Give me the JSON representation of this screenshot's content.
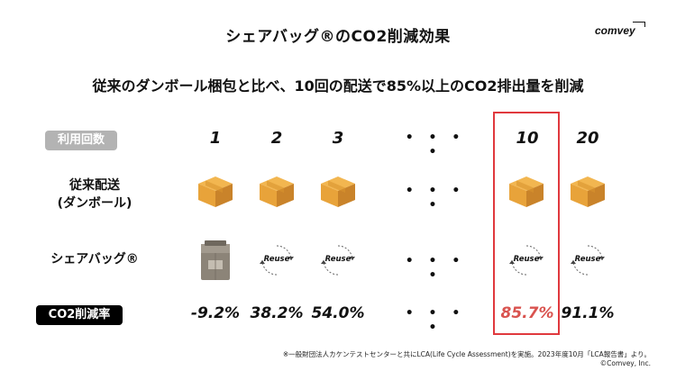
{
  "header": {
    "title": "シェアバッグ®のCO2削減効果",
    "logo": "comvey"
  },
  "subtitle": "従来のダンボール梱包と比べ、10回の配送で85%以上のCO2排出量を削減",
  "columns": {
    "label": "利用回数",
    "items": [
      "1",
      "2",
      "3",
      "10",
      "20"
    ],
    "dots": "• • • •"
  },
  "rows": {
    "conventional": {
      "label_line1": "従来配送",
      "label_line2": "(ダンボール)",
      "icon": "cardboard-box-icon"
    },
    "sharebag": {
      "label": "シェアバッグ®",
      "reuse_text": "Reuse",
      "icon": "reuse-icon"
    },
    "reduction": {
      "label": "CO2削減率",
      "values": [
        "-9.2%",
        "38.2%",
        "54.0%",
        "85.7%",
        "91.1%"
      ]
    }
  },
  "colors": {
    "highlight": "#e0393e",
    "highlight_text": "#d9534f",
    "box_orange": "#e8a33a"
  },
  "footnote": "※一般財団法人カケンテストセンターと共にLCA(Life Cycle Assessment)を実施。2023年度10月「LCA報告書」より。",
  "copyright": "©Comvey, Inc."
}
